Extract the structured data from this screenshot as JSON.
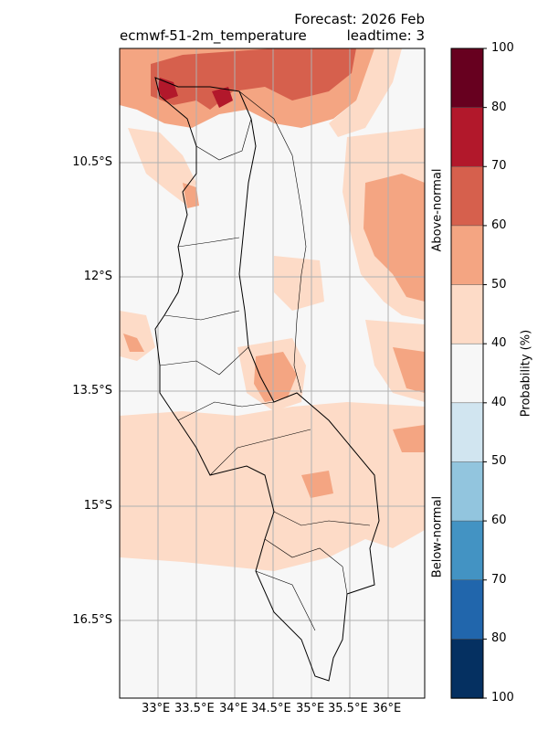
{
  "title": {
    "model": "ecmwf-51-2m_temperature",
    "forecast": "Forecast: 2026 Feb",
    "leadtime": "leadtime: 3"
  },
  "axes": {
    "lon_ticks": [
      "33°E",
      "33.5°E",
      "34°E",
      "34.5°E",
      "35°E",
      "35.5°E",
      "36°E"
    ],
    "lat_ticks": [
      "10.5°S",
      "12°S",
      "13.5°S",
      "15°S",
      "16.5°S"
    ]
  },
  "colorbar": {
    "label": "Probability (%)",
    "above_label": "Above-normal",
    "below_label": "Below-normal",
    "tick_labels": [
      "100",
      "80",
      "70",
      "60",
      "50",
      "40",
      "40",
      "50",
      "60",
      "70",
      "80",
      "100"
    ],
    "colors": [
      "#67001f",
      "#b2182b",
      "#d6604d",
      "#f4a582",
      "#fddbc7",
      "#f7f7f7",
      "#d1e5f0",
      "#92c5de",
      "#4393c3",
      "#2166ac",
      "#053061"
    ]
  }
}
